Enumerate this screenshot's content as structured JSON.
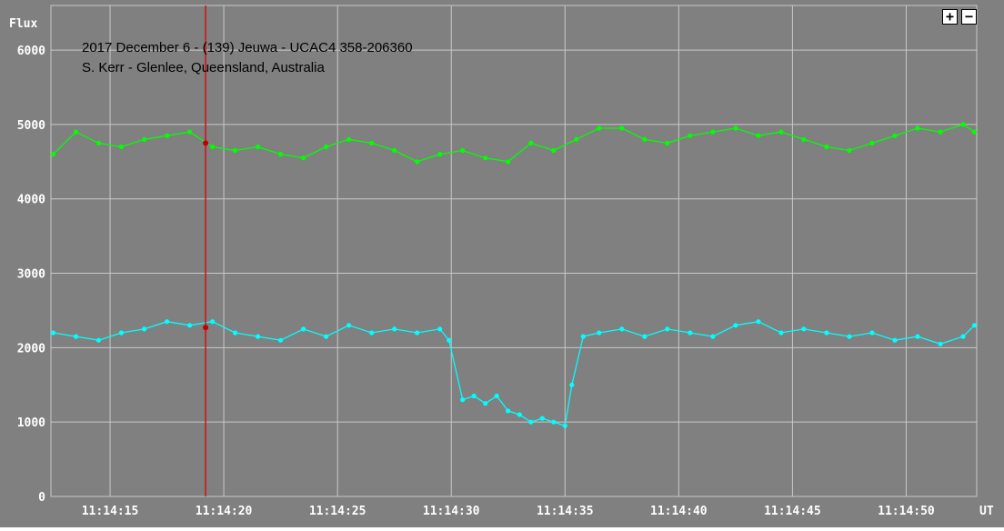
{
  "chart_data": {
    "type": "line",
    "title": "2017 December 6 - (139) Jeuwa - UCAC4 358-206360",
    "subtitle": "S. Kerr - Glenlee, Queensland, Australia",
    "ylabel": "Flux",
    "xlabel": "UT",
    "ylim": [
      0,
      6600
    ],
    "y_ticks": [
      "0",
      "1000",
      "2000",
      "3000",
      "4000",
      "5000",
      "6000"
    ],
    "x_ticks": [
      "11:14:15",
      "11:14:20",
      "11:14:25",
      "11:14:30",
      "11:14:35",
      "11:14:40",
      "11:14:45",
      "11:14:50"
    ],
    "x_tick_values": [
      15,
      20,
      25,
      30,
      35,
      40,
      45,
      50
    ],
    "x_unit_note": "",
    "xlim": [
      12.4,
      53.1
    ],
    "grid": true,
    "legend": "none",
    "cursor_x": 19.2,
    "cursor_points": [
      4750,
      2270
    ],
    "zoom_in_label": "+",
    "zoom_out_label": "−",
    "colors": {
      "background": "#808080",
      "grid": "#c8c8c8",
      "series_comparison": "#00ff00",
      "series_target": "#00ffff",
      "cursor": "#d01010",
      "cursor_point": "#c00000",
      "text": "#000000",
      "axis_text": "#ffffff"
    },
    "series": [
      {
        "key": "comparison",
        "x": [
          12.5,
          13.5,
          14.5,
          15.5,
          16.5,
          17.5,
          18.5,
          19.5,
          20.5,
          21.5,
          22.5,
          23.5,
          24.5,
          25.5,
          26.5,
          27.5,
          28.5,
          29.5,
          30.5,
          31.5,
          32.5,
          33.5,
          34.5,
          35.5,
          36.5,
          37.5,
          38.5,
          39.5,
          40.5,
          41.5,
          42.5,
          43.5,
          44.5,
          45.5,
          46.5,
          47.5,
          48.5,
          49.5,
          50.5,
          51.5,
          52.5,
          53.0
        ],
        "y": [
          4600,
          4900,
          4750,
          4700,
          4800,
          4850,
          4900,
          4700,
          4650,
          4700,
          4600,
          4550,
          4700,
          4800,
          4750,
          4650,
          4500,
          4600,
          4650,
          4550,
          4500,
          4750,
          4650,
          4800,
          4950,
          4950,
          4800,
          4750,
          4850,
          4900,
          4950,
          4850,
          4900,
          4800,
          4700,
          4650,
          4750,
          4850,
          4950,
          4900,
          5000,
          4900
        ]
      },
      {
        "key": "target",
        "x": [
          12.5,
          13.5,
          14.5,
          15.5,
          16.5,
          17.5,
          18.5,
          19.5,
          20.5,
          21.5,
          22.5,
          23.5,
          24.5,
          25.5,
          26.5,
          27.5,
          28.5,
          29.5,
          29.9,
          30.5,
          31.0,
          31.5,
          32.0,
          32.5,
          33.0,
          33.5,
          34.0,
          34.5,
          35.0,
          35.3,
          35.8,
          36.5,
          37.5,
          38.5,
          39.5,
          40.5,
          41.5,
          42.5,
          43.5,
          44.5,
          45.5,
          46.5,
          47.5,
          48.5,
          49.5,
          50.5,
          51.5,
          52.5,
          53.0
        ],
        "y": [
          2200,
          2150,
          2100,
          2200,
          2250,
          2350,
          2300,
          2350,
          2200,
          2150,
          2100,
          2250,
          2150,
          2300,
          2200,
          2250,
          2200,
          2250,
          2100,
          1300,
          1350,
          1250,
          1350,
          1150,
          1100,
          1000,
          1050,
          1000,
          950,
          1500,
          2150,
          2200,
          2250,
          2150,
          2250,
          2200,
          2150,
          2300,
          2350,
          2200,
          2250,
          2200,
          2150,
          2200,
          2100,
          2150,
          2050,
          2150,
          2300
        ]
      }
    ]
  }
}
